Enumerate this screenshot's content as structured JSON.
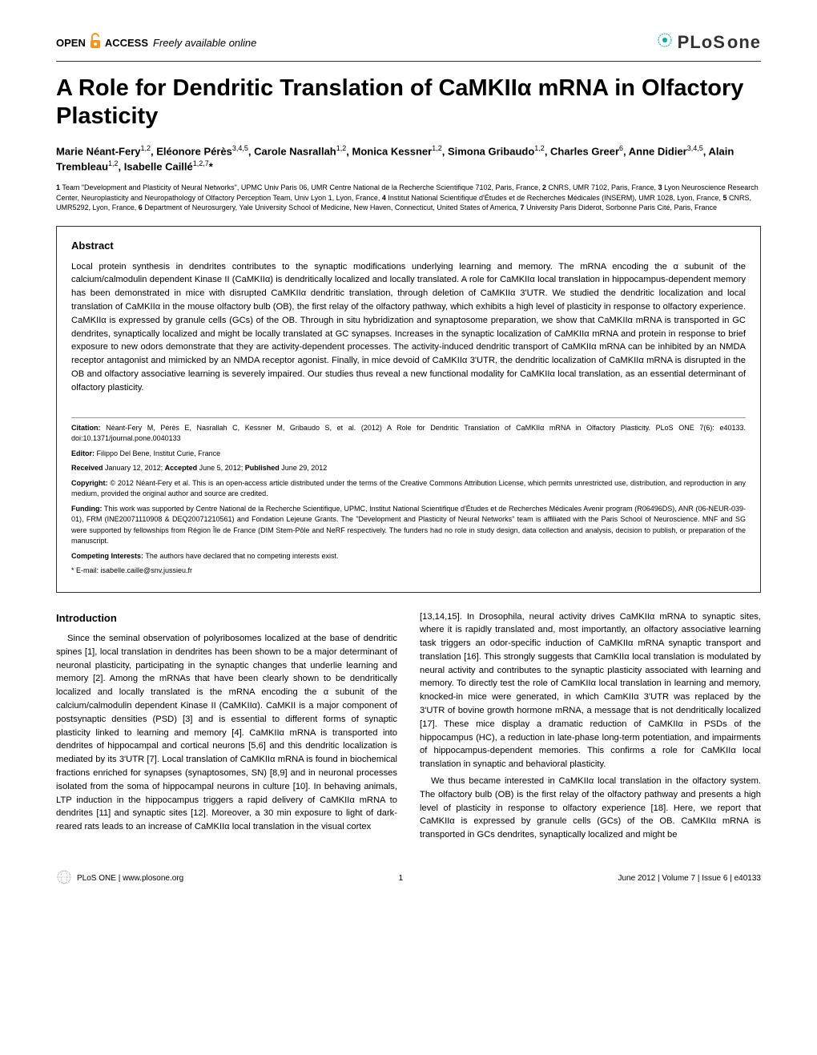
{
  "header": {
    "open_text": "OPEN",
    "access_text": "ACCESS",
    "freely_text": "Freely available online",
    "plos": "PLoS",
    "one": "one"
  },
  "title": "A Role for Dendritic Translation of CaMKIIα mRNA in Olfactory Plasticity",
  "authors_html": "Marie Néant-Fery<sup>1,2</sup>, Eléonore Pérès<sup>3,4,5</sup>, Carole Nasrallah<sup>1,2</sup>, Monica Kessner<sup>1,2</sup>, Simona Gribaudo<sup>1,2</sup>, Charles Greer<sup>6</sup>, Anne Didier<sup>3,4,5</sup>, Alain Trembleau<sup>1,2</sup>, Isabelle Caillé<sup>1,2,7</sup>*",
  "affiliations": "1 Team \"Development and Plasticity of Neural Networks\", UPMC Univ Paris 06, UMR Centre National de la Recherche Scientifique 7102, Paris, France, 2 CNRS, UMR 7102, Paris, France, 3 Lyon Neuroscience Research Center, Neuroplasticity and Neuropathology of Olfactory Perception Team, Univ Lyon 1, Lyon, France, 4 Institut National Scientifique d'Études et de Recherches Médicales (INSERM), UMR 1028, Lyon, France, 5 CNRS, UMR5292, Lyon, France, 6 Department of Neurosurgery, Yale University School of Medicine, New Haven, Connecticut, United States of America, 7 University Paris Diderot, Sorbonne Paris Cité, Paris, France",
  "abstract": {
    "heading": "Abstract",
    "text": "Local protein synthesis in dendrites contributes to the synaptic modifications underlying learning and memory. The mRNA encoding the α subunit of the calcium/calmodulin dependent Kinase II (CaMKIIα) is dendritically localized and locally translated. A role for CaMKIIα local translation in hippocampus-dependent memory has been demonstrated in mice with disrupted CaMKIIα dendritic translation, through deletion of CaMKIIα 3'UTR. We studied the dendritic localization and local translation of CaMKIIα in the mouse olfactory bulb (OB), the first relay of the olfactory pathway, which exhibits a high level of plasticity in response to olfactory experience. CaMKIIα is expressed by granule cells (GCs) of the OB. Through in situ hybridization and synaptosome preparation, we show that CaMKIIα mRNA is transported in GC dendrites, synaptically localized and might be locally translated at GC synapses. Increases in the synaptic localization of CaMKIIα mRNA and protein in response to brief exposure to new odors demonstrate that they are activity-dependent processes. The activity-induced dendritic transport of CaMKIIα mRNA can be inhibited by an NMDA receptor antagonist and mimicked by an NMDA receptor agonist. Finally, in mice devoid of CaMKIIα 3'UTR, the dendritic localization of CaMKIIα mRNA is disrupted in the OB and olfactory associative learning is severely impaired. Our studies thus reveal a new functional modality for CaMKIIα local translation, as an essential determinant of olfactory plasticity."
  },
  "meta": {
    "citation_label": "Citation:",
    "citation_text": "Néant-Fery M, Pérès E, Nasrallah C, Kessner M, Gribaudo S, et al. (2012) A Role for Dendritic Translation of CaMKIIα mRNA in Olfactory Plasticity. PLoS ONE 7(6): e40133. doi:10.1371/journal.pone.0040133",
    "editor_label": "Editor:",
    "editor_text": "Filippo Del Bene, Institut Curie, France",
    "received_label": "Received",
    "received_text": "January 12, 2012;",
    "accepted_label": "Accepted",
    "accepted_text": "June 5, 2012;",
    "published_label": "Published",
    "published_text": "June 29, 2012",
    "copyright_label": "Copyright:",
    "copyright_text": "© 2012 Néant-Fery et al. This is an open-access article distributed under the terms of the Creative Commons Attribution License, which permits unrestricted use, distribution, and reproduction in any medium, provided the original author and source are credited.",
    "funding_label": "Funding:",
    "funding_text": "This work was supported by Centre National de la Recherche Scientifique, UPMC, Institut National Scientifique d'Études et de Recherches Médicales Avenir program (R06496DS), ANR (06-NEUR-039-01), FRM (INE20071110908 & DEQ20071210561) and Fondation Lejeune Grants. The \"Development and Plasticity of Neural Networks\" team is affiliated with the Paris School of Neuroscience. MNF and SG were supported by fellowships from Région Île de France (DIM Stem-Pôle and NeRF respectively. The funders had no role in study design, data collection and analysis, decision to publish, or preparation of the manuscript.",
    "competing_label": "Competing Interests:",
    "competing_text": "The authors have declared that no competing interests exist.",
    "email_label": "* E-mail:",
    "email_text": "isabelle.caille@snv.jussieu.fr"
  },
  "body": {
    "intro_heading": "Introduction",
    "col1_p1": "Since the seminal observation of polyribosomes localized at the base of dendritic spines [1], local translation in dendrites has been shown to be a major determinant of neuronal plasticity, participating in the synaptic changes that underlie learning and memory [2]. Among the mRNAs that have been clearly shown to be dendritically localized and locally translated is the mRNA encoding the α subunit of the calcium/calmodulin dependent Kinase II (CaMKIIα). CaMKII is a major component of postsynaptic densities (PSD) [3] and is essential to different forms of synaptic plasticity linked to learning and memory [4]. CaMKIIα mRNA is transported into dendrites of hippocampal and cortical neurons [5,6] and this dendritic localization is mediated by its 3'UTR [7]. Local translation of CaMKIIα mRNA is found in biochemical fractions enriched for synapses (synaptosomes, SN) [8,9] and in neuronal processes isolated from the soma of hippocampal neurons in culture [10]. In behaving animals, LTP induction in the hippocampus triggers a rapid delivery of CaMKIIα mRNA to dendrites [11] and synaptic sites [12]. Moreover, a 30 min exposure to light of dark-reared rats leads to an increase of CaMKIIα local translation in the visual cortex",
    "col2_p1": "[13,14,15]. In Drosophila, neural activity drives CaMKIIα mRNA to synaptic sites, where it is rapidly translated and, most importantly, an olfactory associative learning task triggers an odor-specific induction of CaMKIIα mRNA synaptic transport and translation [16]. This strongly suggests that CamKIIα local translation is modulated by neural activity and contributes to the synaptic plasticity associated with learning and memory. To directly test the role of CamKIIα local translation in learning and memory, knocked-in mice were generated, in which CamKIIα 3'UTR was replaced by the 3'UTR of bovine growth hormone mRNA, a message that is not dendritically localized [17]. These mice display a dramatic reduction of CaMKIIα in PSDs of the hippocampus (HC), a reduction in late-phase long-term potentiation, and impairments of hippocampus-dependent memories. This confirms a role for CaMKIIα local translation in synaptic and behavioral plasticity.",
    "col2_p2": "We thus became interested in CaMKIIα local translation in the olfactory system. The olfactory bulb (OB) is the first relay of the olfactory pathway and presents a high level of plasticity in response to olfactory experience [18]. Here, we report that CaMKIIα is expressed by granule cells (GCs) of the OB. CaMKIIα mRNA is transported in GCs dendrites, synaptically localized and might be"
  },
  "footer": {
    "left": "PLoS ONE | www.plosone.org",
    "page": "1",
    "right": "June 2012 | Volume 7 | Issue 6 | e40133"
  },
  "styles": {
    "accent_orange": "#f7941e",
    "accent_teal": "#00a99d"
  }
}
